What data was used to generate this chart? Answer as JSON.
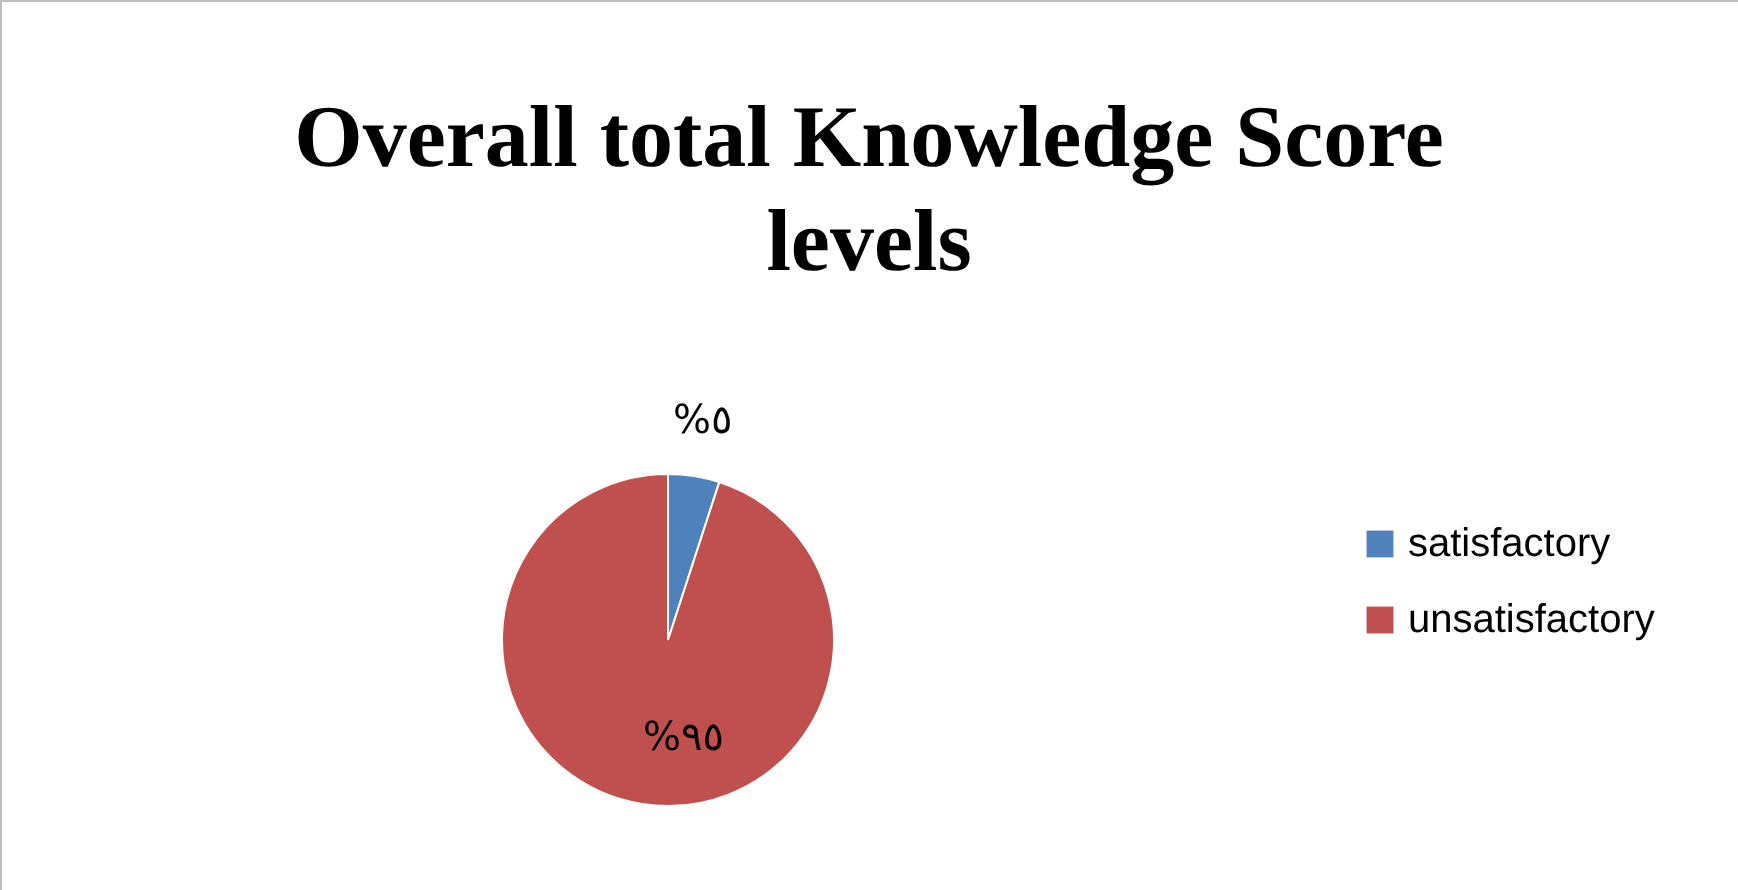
{
  "chart_data": {
    "type": "pie",
    "title": "Overall total Knowledge Score levels",
    "categories": [
      "satisfactory",
      "unsatisfactory"
    ],
    "values": [
      5,
      95
    ],
    "colors": [
      "#4f81bd",
      "#c0504d"
    ],
    "value_labels": [
      "%٥",
      "%٩٥"
    ],
    "legend": "right"
  }
}
